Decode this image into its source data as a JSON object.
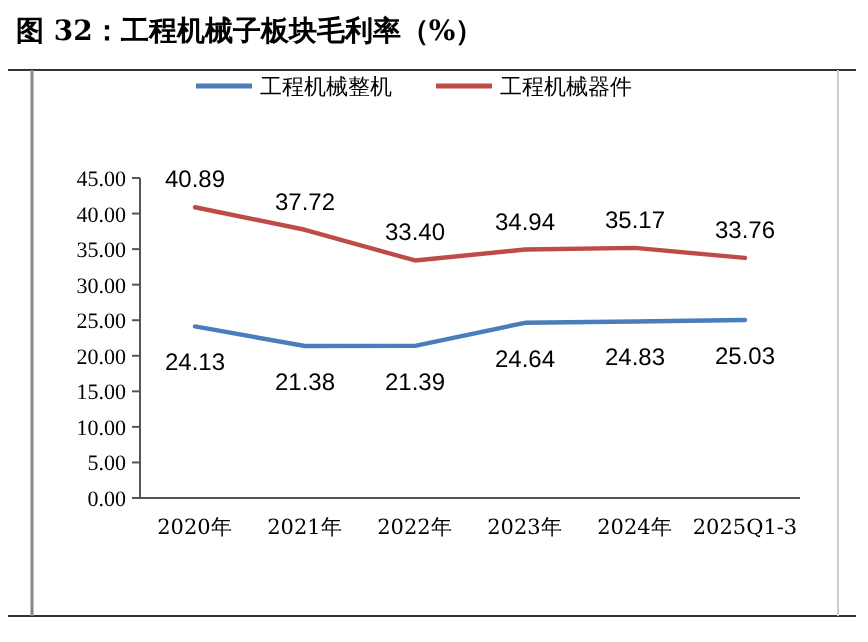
{
  "chart_data": {
    "type": "line",
    "title": "图 32：工程机械子板块毛利率（%）",
    "categories": [
      "2020年",
      "2021年",
      "2022年",
      "2023年",
      "2024年",
      "2025Q1-3"
    ],
    "series": [
      {
        "name": "工程机械整机",
        "color": "#4a7ebb",
        "values": [
          24.13,
          21.38,
          21.39,
          24.64,
          24.83,
          25.03
        ],
        "value_labels": [
          "24.13",
          "21.38",
          "21.39",
          "24.64",
          "24.83",
          "25.03"
        ]
      },
      {
        "name": "工程机械器件",
        "color": "#be4b48",
        "values": [
          40.89,
          37.72,
          33.4,
          34.94,
          35.17,
          33.76
        ],
        "value_labels": [
          "40.89",
          "37.72",
          "33.40",
          "34.94",
          "35.17",
          "33.76"
        ]
      }
    ],
    "ylim": [
      0,
      45
    ],
    "yticks": [
      {
        "value": 0,
        "label": "0.00"
      },
      {
        "value": 5,
        "label": "5.00"
      },
      {
        "value": 10,
        "label": "10.00"
      },
      {
        "value": 15,
        "label": "15.00"
      },
      {
        "value": 20,
        "label": "20.00"
      },
      {
        "value": 25,
        "label": "25.00"
      },
      {
        "value": 30,
        "label": "30.00"
      },
      {
        "value": 35,
        "label": "35.00"
      },
      {
        "value": 40,
        "label": "40.00"
      },
      {
        "value": 45,
        "label": "45.00"
      }
    ],
    "legend": "top",
    "grid": false,
    "marker": "none",
    "line_style": "solid"
  }
}
